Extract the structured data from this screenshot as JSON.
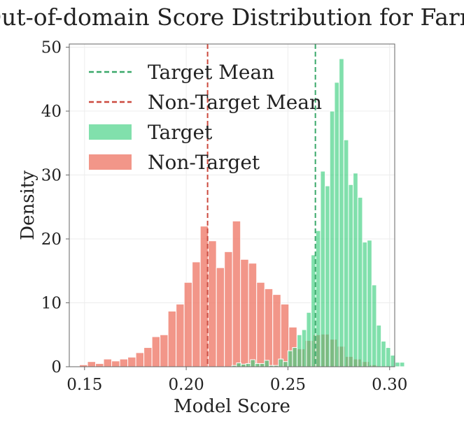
{
  "chart_data": {
    "type": "histogram",
    "title": "Out-of-domain Score Distribution for Farm",
    "xlabel": "Model Score",
    "ylabel": "Density",
    "xlim": [
      0.1425,
      0.3025
    ],
    "ylim": [
      0,
      50.5
    ],
    "xticks": [
      0.15,
      0.2,
      0.25,
      0.3
    ],
    "xtick_labels": [
      "0.15",
      "0.20",
      "0.25",
      "0.30"
    ],
    "yticks": [
      0,
      10,
      20,
      30,
      40,
      50
    ],
    "ytick_labels": [
      "0",
      "10",
      "20",
      "30",
      "40",
      "50"
    ],
    "grid": true,
    "legend_position": "top-left",
    "series": [
      {
        "name": "Non-Target",
        "color": "#ee7868",
        "opacity": 0.78,
        "bin_start": 0.1475,
        "bin_width": 0.00396,
        "values": [
          0.3,
          0.8,
          0.5,
          1.2,
          0.9,
          1.2,
          1.5,
          2.2,
          3.0,
          4.7,
          5.0,
          8.7,
          9.8,
          13.2,
          16.4,
          22.0,
          19.7,
          15.5,
          18.0,
          22.8,
          16.8,
          16.2,
          13.2,
          12.2,
          11.3,
          9.8,
          6.2,
          2.8,
          4.1,
          5.0,
          5.1,
          4.3,
          3.2,
          1.6,
          1.2,
          0.8,
          0.3
        ]
      },
      {
        "name": "Target",
        "color": "#3ecf7f",
        "opacity": 0.65,
        "bin_start": 0.2224,
        "bin_width": 0.002295,
        "values": [
          0.2,
          0.6,
          0.4,
          0.5,
          1.1,
          0.5,
          0.5,
          1.0,
          0.2,
          0.2,
          1.2,
          0.8,
          2.5,
          3.0,
          5.0,
          5.8,
          8.5,
          17.5,
          21.3,
          30.6,
          28.3,
          40.0,
          44.5,
          48.2,
          35.5,
          28.5,
          30.3,
          26.5,
          19.5,
          19.8,
          12.8,
          6.5,
          4.0,
          3.0,
          1.8,
          0.7,
          0.7
        ]
      },
      {
        "name": "Target Mean",
        "type": "vline",
        "x": 0.2635,
        "color": "#3aa86a",
        "dash": true
      },
      {
        "name": "Non-Target Mean",
        "type": "vline",
        "x": 0.2105,
        "color": "#cc4a3f",
        "dash": true
      }
    ]
  }
}
